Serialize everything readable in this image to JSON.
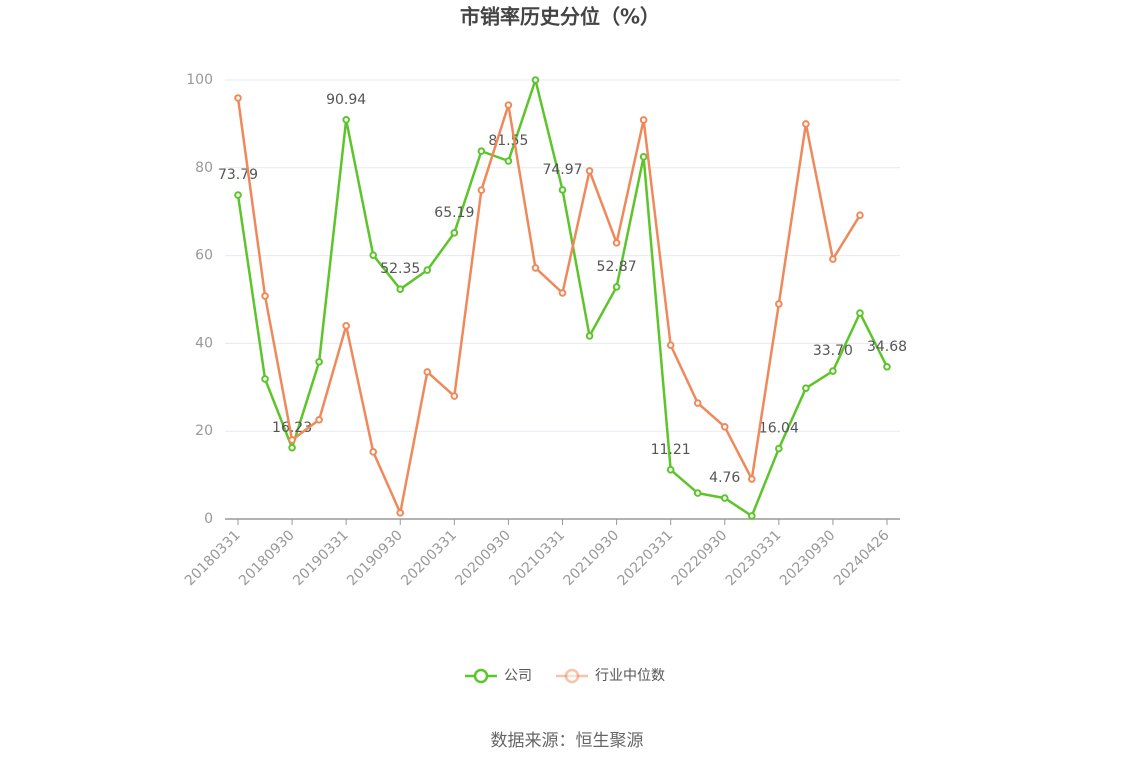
{
  "chart_data": {
    "type": "line",
    "title": "市销率历史分位（%）",
    "source": "数据来源：恒生聚源",
    "categories": [
      "20180331",
      null,
      "20180930",
      null,
      "20190331",
      null,
      "20190930",
      null,
      "20200331",
      null,
      "20200930",
      null,
      "20210331",
      null,
      "20210930",
      null,
      "20220331",
      null,
      "20220930",
      null,
      "20230331",
      null,
      "20230930",
      null,
      "20240426"
    ],
    "series": [
      {
        "name": "公司",
        "color": "#5cc52a",
        "values": [
          73.79,
          31.9,
          16.23,
          35.8,
          90.94,
          60.1,
          52.35,
          56.7,
          65.19,
          83.8,
          81.55,
          100,
          74.97,
          41.7,
          52.87,
          82.5,
          11.21,
          5.9,
          4.76,
          0.7,
          16.04,
          29.8,
          33.7,
          46.9,
          34.68
        ],
        "value_labels": [
          "73.79",
          null,
          "16.23",
          null,
          "90.94",
          null,
          "52.35",
          null,
          "65.19",
          null,
          "81.55",
          null,
          "74.97",
          null,
          "52.87",
          null,
          "11.21",
          null,
          "4.76",
          null,
          "16.04",
          null,
          "33.70",
          null,
          "34.68"
        ]
      },
      {
        "name": "行业中位数",
        "color": "#f0895a",
        "values": [
          95.9,
          50.8,
          18.0,
          22.6,
          44.0,
          15.3,
          1.4,
          33.5,
          28.0,
          74.9,
          94.3,
          57.2,
          51.5,
          79.3,
          62.9,
          90.9,
          39.6,
          26.4,
          21.0,
          9.1,
          49.0,
          90.0,
          59.2,
          69.2,
          null
        ]
      }
    ],
    "ylim": [
      0,
      100
    ],
    "yticks": [
      0,
      20,
      40,
      60,
      80,
      100
    ],
    "grid": true,
    "legend": "bottom"
  }
}
